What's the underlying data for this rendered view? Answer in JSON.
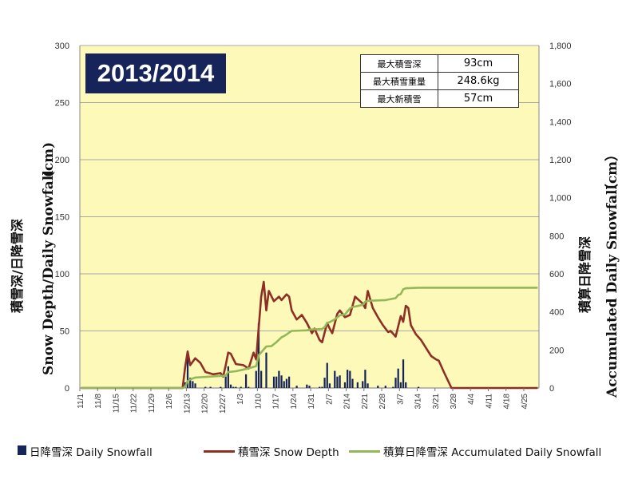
{
  "colors": {
    "plot_background": "#fdf9b8",
    "grid": "#a8a8a8",
    "daily_snowfall": "#16245a",
    "snow_depth": "#8e2f25",
    "accumulated": "#93b85a",
    "season_box": "#16245a"
  },
  "season_label": "2013/2014",
  "stats_table": [
    {
      "label": "最大積雪深",
      "value": "93cm"
    },
    {
      "label": "最大積雪重量",
      "value": "248.6kg"
    },
    {
      "label": "最大新積雪",
      "value": "57cm"
    }
  ],
  "legend": {
    "daily": "日降雪深 Daily Snowfall",
    "depth": "積雪深 Snow Depth",
    "accum": "積算日降雪深 Accumulated Daily Snowfall"
  },
  "chart_data": {
    "type": "bar+line",
    "left_axis_title_en": "Snow Depth/Daily Snowfall",
    "left_axis_unit": "(cm)",
    "left_axis_title_jp": "積雪深/日降雪深",
    "right_axis_title_en": "Accumulated Daily Snowfall",
    "right_axis_unit": "（cm）",
    "right_axis_title_jp": "積算日降雪深",
    "left_ylim": [
      0,
      300
    ],
    "left_ticks": [
      "0",
      "50",
      "100",
      "150",
      "200",
      "250",
      "300"
    ],
    "right_ylim": [
      0,
      1800
    ],
    "right_ticks": [
      "0",
      "200",
      "400",
      "600",
      "800",
      "1,000",
      "1,200",
      "1,400",
      "1,600",
      "1,800"
    ],
    "x_range": [
      "11/1",
      "4/30"
    ],
    "x_ticks": [
      "11/1",
      "11/8",
      "11/15",
      "11/22",
      "11/29",
      "12/6",
      "12/13",
      "12/20",
      "12/27",
      "1/3",
      "1/10",
      "1/17",
      "1/24",
      "1/31",
      "2/7",
      "2/14",
      "2/21",
      "2/28",
      "3/7",
      "3/14",
      "3/21",
      "3/28",
      "4/4",
      "4/11",
      "4/18",
      "4/25"
    ],
    "grid": "horizontal",
    "legend_position": "bottom",
    "series": [
      {
        "name": "日降雪深 Daily Snowfall",
        "type": "bar",
        "axis": "left",
        "points": [
          [
            "12/12",
            5
          ],
          [
            "12/13",
            31
          ],
          [
            "12/14",
            9
          ],
          [
            "12/15",
            6
          ],
          [
            "12/16",
            4
          ],
          [
            "12/20",
            1
          ],
          [
            "12/22",
            1
          ],
          [
            "12/26",
            1
          ],
          [
            "12/28",
            10
          ],
          [
            "12/29",
            19
          ],
          [
            "12/30",
            3
          ],
          [
            "12/31",
            1
          ],
          [
            "1/1",
            1
          ],
          [
            "1/3",
            1
          ],
          [
            "1/5",
            12
          ],
          [
            "1/6",
            1
          ],
          [
            "1/9",
            15
          ],
          [
            "1/10",
            57
          ],
          [
            "1/11",
            15
          ],
          [
            "1/13",
            31
          ],
          [
            "1/16",
            10
          ],
          [
            "1/17",
            10
          ],
          [
            "1/18",
            15
          ],
          [
            "1/19",
            11
          ],
          [
            "1/20",
            6
          ],
          [
            "1/21",
            8
          ],
          [
            "1/22",
            10
          ],
          [
            "1/25",
            2
          ],
          [
            "1/29",
            3
          ],
          [
            "1/30",
            2
          ],
          [
            "2/3",
            1
          ],
          [
            "2/4",
            1
          ],
          [
            "2/5",
            9
          ],
          [
            "2/6",
            22
          ],
          [
            "2/7",
            4
          ],
          [
            "2/9",
            15
          ],
          [
            "2/10",
            10
          ],
          [
            "2/11",
            11
          ],
          [
            "2/13",
            5
          ],
          [
            "2/14",
            16
          ],
          [
            "2/15",
            15
          ],
          [
            "2/16",
            8
          ],
          [
            "2/18",
            5
          ],
          [
            "2/20",
            6
          ],
          [
            "2/21",
            16
          ],
          [
            "2/22",
            4
          ],
          [
            "2/26",
            2
          ],
          [
            "3/1",
            2
          ],
          [
            "3/4",
            1
          ],
          [
            "3/5",
            9
          ],
          [
            "3/6",
            17
          ],
          [
            "3/7",
            5
          ],
          [
            "3/8",
            25
          ],
          [
            "3/9",
            5
          ],
          [
            "3/14",
            1
          ]
        ]
      },
      {
        "name": "積雪深 Snow Depth",
        "type": "line",
        "axis": "left",
        "points": [
          [
            "11/1",
            0
          ],
          [
            "12/11",
            0
          ],
          [
            "12/12",
            18
          ],
          [
            "12/13",
            32
          ],
          [
            "12/14",
            20
          ],
          [
            "12/16",
            26
          ],
          [
            "12/18",
            22
          ],
          [
            "12/20",
            14
          ],
          [
            "12/23",
            12
          ],
          [
            "12/26",
            13
          ],
          [
            "12/27",
            10
          ],
          [
            "12/28",
            20
          ],
          [
            "12/29",
            31
          ],
          [
            "12/30",
            30
          ],
          [
            "1/1",
            21
          ],
          [
            "1/4",
            20
          ],
          [
            "1/6",
            17
          ],
          [
            "1/8",
            31
          ],
          [
            "1/9",
            25
          ],
          [
            "1/11",
            80
          ],
          [
            "1/12",
            93
          ],
          [
            "1/13",
            68
          ],
          [
            "1/14",
            85
          ],
          [
            "1/16",
            76
          ],
          [
            "1/18",
            80
          ],
          [
            "1/19",
            77
          ],
          [
            "1/21",
            82
          ],
          [
            "1/22",
            80
          ],
          [
            "1/23",
            68
          ],
          [
            "1/25",
            60
          ],
          [
            "1/27",
            64
          ],
          [
            "1/29",
            57
          ],
          [
            "1/31",
            48
          ],
          [
            "2/1",
            52
          ],
          [
            "2/3",
            42
          ],
          [
            "2/4",
            40
          ],
          [
            "2/6",
            57
          ],
          [
            "2/7",
            52
          ],
          [
            "2/8",
            48
          ],
          [
            "2/10",
            65
          ],
          [
            "2/11",
            68
          ],
          [
            "2/13",
            62
          ],
          [
            "2/15",
            64
          ],
          [
            "2/17",
            80
          ],
          [
            "2/19",
            76
          ],
          [
            "2/20",
            74
          ],
          [
            "2/21",
            70
          ],
          [
            "2/22",
            85
          ],
          [
            "2/24",
            70
          ],
          [
            "2/26",
            62
          ],
          [
            "2/28",
            55
          ],
          [
            "3/2",
            49
          ],
          [
            "3/3",
            50
          ],
          [
            "3/5",
            45
          ],
          [
            "3/7",
            63
          ],
          [
            "3/8",
            58
          ],
          [
            "3/9",
            72
          ],
          [
            "3/10",
            70
          ],
          [
            "3/11",
            55
          ],
          [
            "3/13",
            47
          ],
          [
            "3/15",
            42
          ],
          [
            "3/17",
            35
          ],
          [
            "3/19",
            28
          ],
          [
            "3/21",
            25
          ],
          [
            "3/22",
            24
          ],
          [
            "3/24",
            14
          ],
          [
            "3/27",
            0
          ],
          [
            "4/30",
            0
          ]
        ]
      },
      {
        "name": "積算日降雪深 Accumulated Daily Snowfall",
        "type": "line",
        "axis": "right",
        "points": [
          [
            "11/1",
            0
          ],
          [
            "12/11",
            0
          ],
          [
            "12/12",
            5
          ],
          [
            "12/13",
            36
          ],
          [
            "12/14",
            45
          ],
          [
            "12/16",
            55
          ],
          [
            "12/28",
            65
          ],
          [
            "12/29",
            84
          ],
          [
            "1/1",
            88
          ],
          [
            "1/5",
            100
          ],
          [
            "1/9",
            115
          ],
          [
            "1/10",
            172
          ],
          [
            "1/11",
            187
          ],
          [
            "1/13",
            218
          ],
          [
            "1/15",
            220
          ],
          [
            "1/17",
            241
          ],
          [
            "1/19",
            267
          ],
          [
            "1/20",
            273
          ],
          [
            "1/21",
            281
          ],
          [
            "1/22",
            291
          ],
          [
            "1/23",
            300
          ],
          [
            "1/29",
            303
          ],
          [
            "1/30",
            307
          ],
          [
            "2/4",
            310
          ],
          [
            "2/5",
            320
          ],
          [
            "2/6",
            342
          ],
          [
            "2/7",
            346
          ],
          [
            "2/9",
            361
          ],
          [
            "2/11",
            382
          ],
          [
            "2/13",
            387
          ],
          [
            "2/14",
            403
          ],
          [
            "2/15",
            418
          ],
          [
            "2/16",
            426
          ],
          [
            "2/18",
            431
          ],
          [
            "2/20",
            437
          ],
          [
            "2/21",
            453
          ],
          [
            "2/22",
            458
          ],
          [
            "3/1",
            462
          ],
          [
            "3/5",
            472
          ],
          [
            "3/6",
            489
          ],
          [
            "3/7",
            494
          ],
          [
            "3/8",
            519
          ],
          [
            "3/9",
            524
          ],
          [
            "3/14",
            527
          ],
          [
            "4/30",
            527
          ]
        ]
      }
    ]
  }
}
